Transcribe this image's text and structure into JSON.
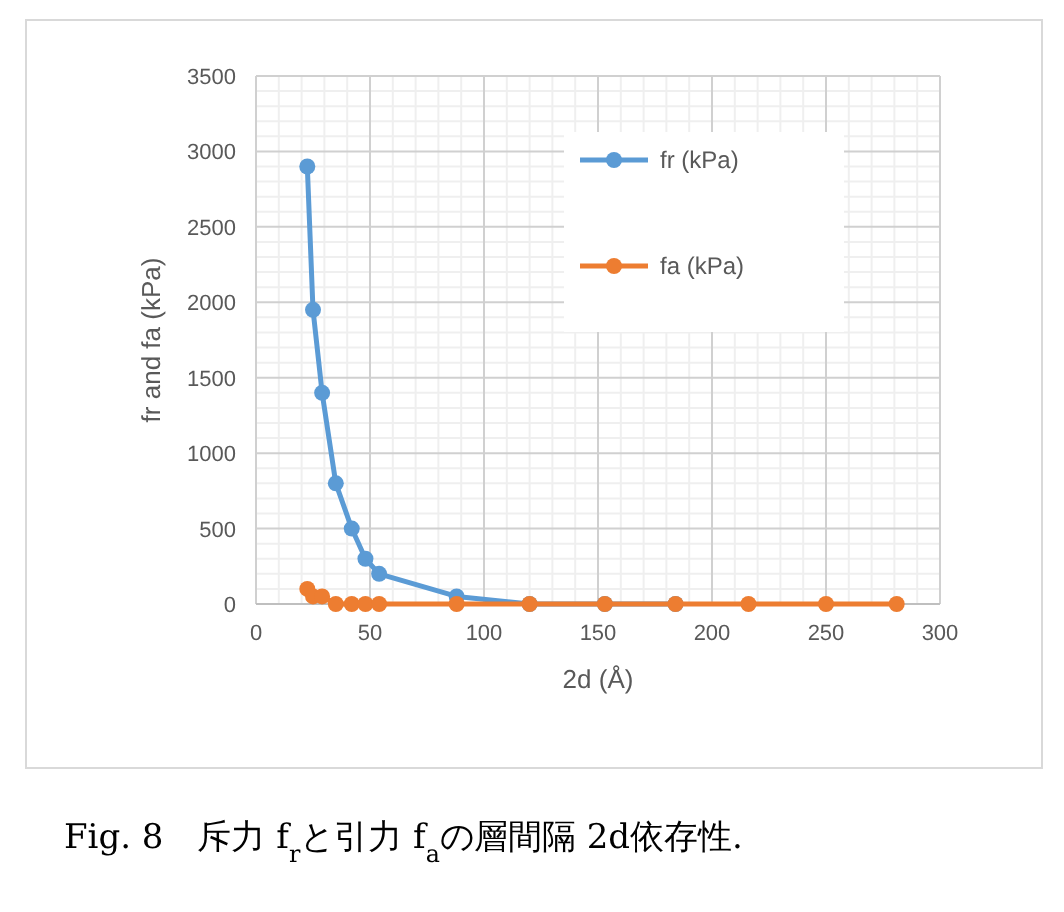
{
  "chart_data": {
    "type": "line",
    "xlabel": "2d  (Å)",
    "ylabel": "fr and fa  (kPa)",
    "xlim": [
      0,
      300
    ],
    "xticks": [
      0,
      50,
      100,
      150,
      200,
      250,
      300
    ],
    "ylim": [
      0,
      3500
    ],
    "yticks": [
      0,
      500,
      1000,
      1500,
      2000,
      2500,
      3000,
      3500
    ],
    "grid": true,
    "legend": "top right",
    "marker": "circle",
    "line_style": "solid",
    "x": [
      22.5,
      25,
      29,
      35,
      42,
      48,
      54,
      88,
      120,
      153,
      184,
      216,
      250,
      281
    ],
    "series": [
      {
        "name": "fr (kPa)",
        "color": "#5b9bd5",
        "values": [
          2900,
          1950,
          1400,
          800,
          500,
          300,
          200,
          50,
          0,
          0,
          0,
          null,
          null,
          null
        ]
      },
      {
        "name": "fa (kPa)",
        "color": "#ed7d31",
        "values": [
          100,
          50,
          50,
          0,
          0,
          0,
          0,
          0,
          0,
          0,
          0,
          0,
          0,
          0
        ]
      }
    ],
    "annotations": [
      "Fig. 8　斥力 f$_{r}$と引力 f$_{a}$の層間隔 2d依存性."
    ]
  }
}
